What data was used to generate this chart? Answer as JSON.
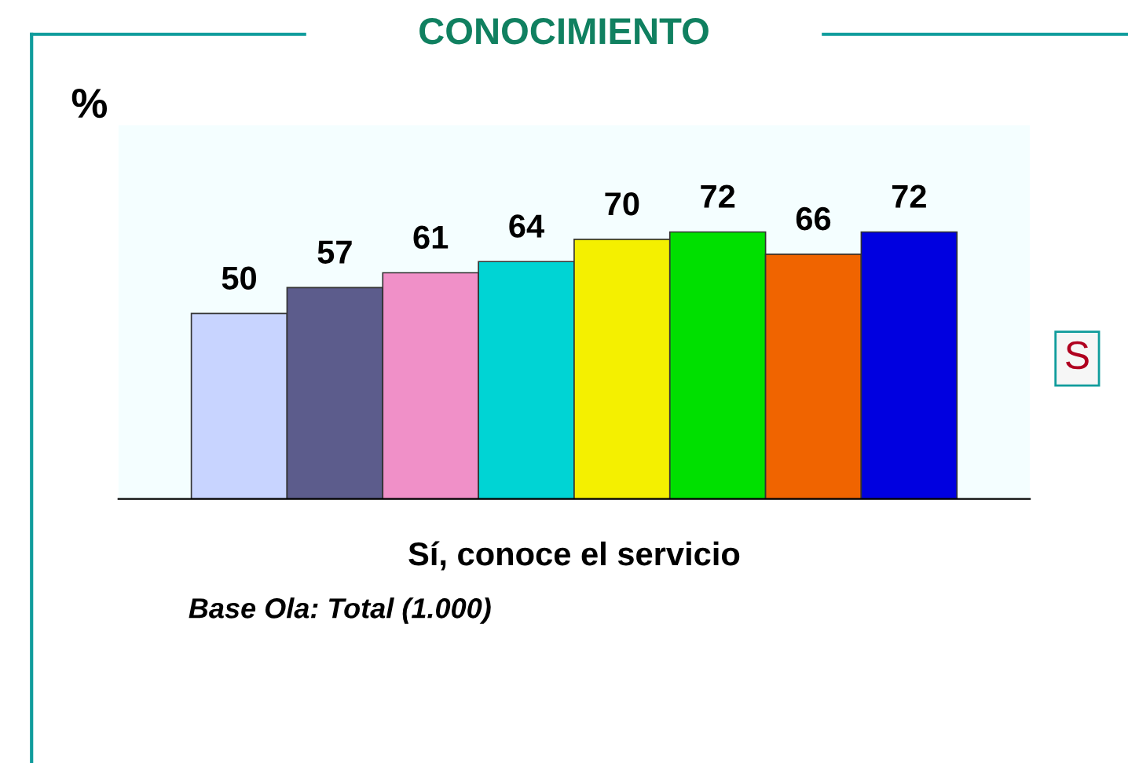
{
  "chart_data": {
    "type": "bar",
    "title": "CONOCIMIENTO",
    "ylabel": "%",
    "xlabel": "Sí, conoce el servicio",
    "categories": [
      null,
      null,
      null,
      null,
      null,
      null,
      null,
      null
    ],
    "values": [
      50,
      57,
      61,
      64,
      70,
      72,
      66,
      72
    ],
    "colors": [
      "#c8d4ff",
      "#5c5c8c",
      "#f090c8",
      "#00d4d4",
      "#f4f000",
      "#00e000",
      "#f06400",
      "#0000e0"
    ],
    "data_labels": true,
    "tick_labels": "x",
    "annotations": [
      "Base Ola: Total (1.000)",
      "S"
    ]
  }
}
